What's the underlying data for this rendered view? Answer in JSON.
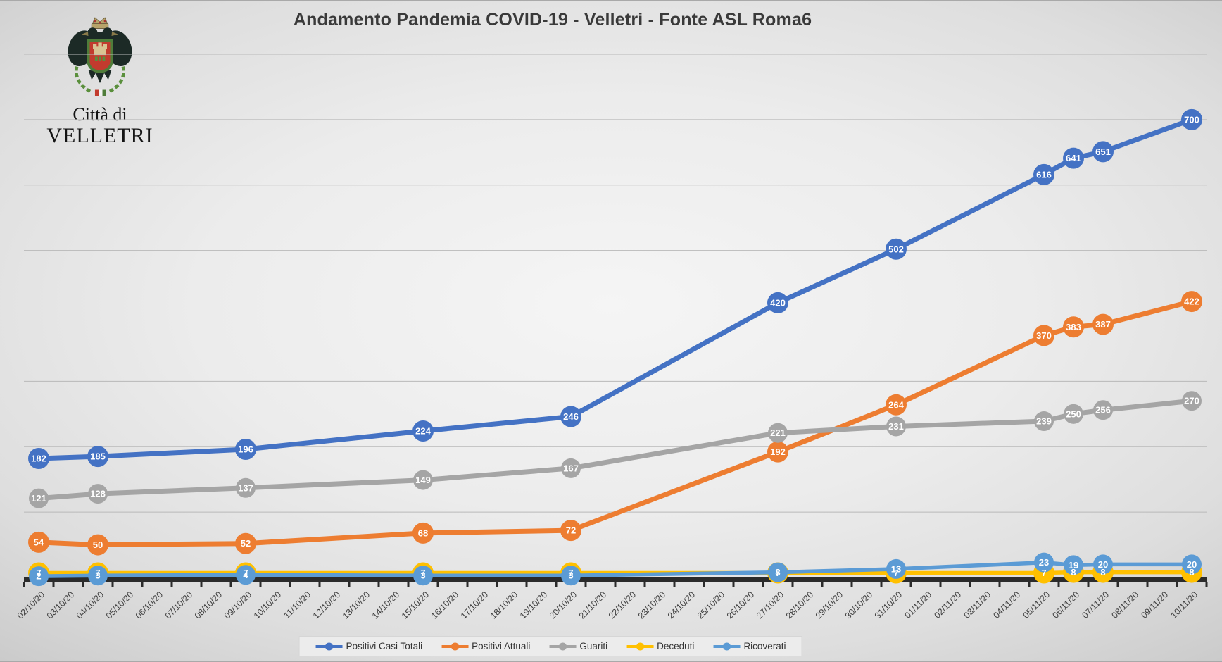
{
  "title": "Andamento Pandemia COVID-19 - Velletri - Fonte ASL Roma6",
  "logo": {
    "crest": "velletri-coat-of-arms",
    "line1": "Città di",
    "line2": "VELLETRI"
  },
  "legend": {
    "position": "bottom",
    "items": [
      "Positivi Casi Totali",
      "Positivi Attuali",
      "Guariti",
      "Deceduti",
      "Ricoverati"
    ]
  },
  "chart_data": {
    "type": "line",
    "title": "Andamento Pandemia COVID-19 - Velletri - Fonte ASL Roma6",
    "xlabel": "",
    "ylabel": "",
    "ylim": [
      0,
      800
    ],
    "gridline_step": 100,
    "grid": true,
    "legend_position": "bottom",
    "x_categories": [
      "02/10/20",
      "03/10/20",
      "04/10/20",
      "05/10/20",
      "06/10/20",
      "07/10/20",
      "08/10/20",
      "09/10/20",
      "10/10/20",
      "11/10/20",
      "12/10/20",
      "13/10/20",
      "14/10/20",
      "15/10/20",
      "16/10/20",
      "17/10/20",
      "18/10/20",
      "19/10/20",
      "20/10/20",
      "21/10/20",
      "22/10/20",
      "23/10/20",
      "24/10/20",
      "25/10/20",
      "26/10/20",
      "27/10/20",
      "28/10/20",
      "29/10/20",
      "30/10/20",
      "31/10/20",
      "01/11/20",
      "02/11/20",
      "03/11/20",
      "04/11/20",
      "05/11/20",
      "06/11/20",
      "07/11/20",
      "08/11/20",
      "09/11/20",
      "10/11/20"
    ],
    "data_dates": [
      "02/10/20",
      "04/10/20",
      "09/10/20",
      "15/10/20",
      "20/10/20",
      "27/10/20",
      "31/10/20",
      "05/11/20",
      "06/11/20",
      "07/11/20",
      "10/11/20"
    ],
    "series": [
      {
        "name": "Positivi Casi Totali",
        "color": "#4472C4",
        "marker_radius": 15,
        "line_width": 7,
        "values": [
          182,
          185,
          196,
          224,
          246,
          420,
          502,
          616,
          641,
          651,
          700
        ]
      },
      {
        "name": "Positivi Attuali",
        "color": "#ED7D31",
        "marker_radius": 15,
        "line_width": 7,
        "values": [
          54,
          50,
          52,
          68,
          72,
          192,
          264,
          370,
          383,
          387,
          422
        ]
      },
      {
        "name": "Guariti",
        "color": "#A5A5A5",
        "marker_radius": 14,
        "line_width": 7,
        "values": [
          121,
          128,
          137,
          149,
          167,
          221,
          231,
          239,
          250,
          256,
          270
        ]
      },
      {
        "name": "Deceduti",
        "color": "#FFC000",
        "marker_radius": 15,
        "line_width": 5.5,
        "values": [
          7,
          7,
          7,
          7,
          7,
          7,
          7,
          7,
          8,
          8,
          8
        ]
      },
      {
        "name": "Ricoverati",
        "color": "#5B9BD5",
        "marker_radius": 14,
        "line_width": 5.5,
        "values": [
          2,
          3,
          4,
          3,
          3,
          8,
          13,
          23,
          19,
          20,
          20
        ]
      }
    ],
    "axis_colors": {
      "gridline": "#b9b9b9",
      "axis_line": "#2b2b2b",
      "tick_label": "#404040"
    },
    "data_label_color": "#ffffff"
  }
}
